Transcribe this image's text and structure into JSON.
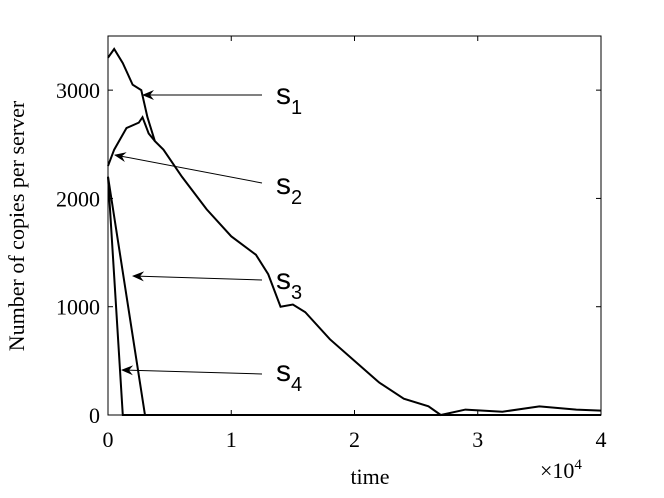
{
  "chart_data": {
    "type": "line",
    "x_label": "time",
    "y_label": "Number of copies per server",
    "x_scale_base": "×10",
    "x_scale_exponent": "4",
    "xlim": [
      0,
      4
    ],
    "xticks": [
      0,
      1,
      2,
      3,
      4
    ],
    "ylim": [
      0,
      3500
    ],
    "yticks": [
      0,
      1000,
      2000,
      3000
    ],
    "grid": false,
    "series": [
      {
        "color": "#000000",
        "x": [
          0,
          0.05,
          0.12,
          0.2,
          0.27,
          0.32,
          0.38,
          0.45,
          0.6,
          0.8,
          1.0,
          1.2,
          1.3,
          1.4,
          1.5,
          1.6,
          1.8,
          2.0,
          2.2,
          2.4,
          2.6,
          2.7,
          2.9,
          3.2,
          3.5,
          3.8,
          4.0
        ],
        "values": [
          3300,
          3380,
          3250,
          3050,
          3000,
          2750,
          2530,
          2450,
          2200,
          1900,
          1650,
          1480,
          1300,
          1000,
          1020,
          950,
          700,
          500,
          300,
          150,
          80,
          0,
          50,
          30,
          80,
          50,
          40
        ]
      },
      {
        "color": "#000000",
        "x": [
          0,
          0.05,
          0.15,
          0.25,
          0.28,
          0.33,
          0.38
        ],
        "values": [
          2300,
          2450,
          2650,
          2700,
          2750,
          2600,
          2530
        ]
      },
      {
        "color": "#000000",
        "x": [
          0,
          0.3,
          4
        ],
        "values": [
          2200,
          0,
          0
        ]
      },
      {
        "color": "#000000",
        "x": [
          0,
          0.12,
          4
        ],
        "values": [
          2200,
          0,
          0
        ]
      }
    ],
    "annotations": [
      {
        "text": "s",
        "sub": "1"
      },
      {
        "text": "s",
        "sub": "2"
      },
      {
        "text": "s",
        "sub": "3"
      },
      {
        "text": "s",
        "sub": "4"
      }
    ]
  }
}
